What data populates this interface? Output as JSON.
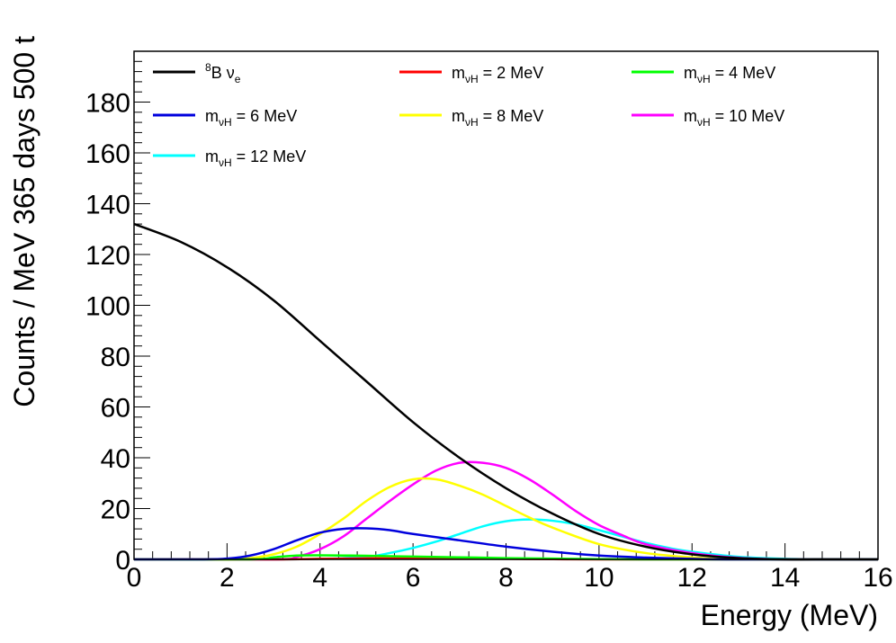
{
  "chart_data": {
    "type": "line",
    "xlabel": "Energy (MeV)",
    "ylabel": "Counts / MeV 365 days 500 t",
    "xlim": [
      0,
      16
    ],
    "ylim": [
      0,
      200
    ],
    "x_ticks": [
      0,
      2,
      4,
      6,
      8,
      10,
      12,
      14,
      16
    ],
    "y_ticks": [
      0,
      20,
      40,
      60,
      80,
      100,
      120,
      140,
      160,
      180
    ],
    "grid": false,
    "legend_position": "top",
    "series": [
      {
        "name": "8B νe",
        "label_main": "B ν",
        "label_sup": "8",
        "label_sub": "e",
        "color": "#000000",
        "x": [
          0,
          1,
          2,
          3,
          4,
          5,
          6,
          7,
          8,
          9,
          10,
          11,
          12,
          13,
          14,
          15,
          16
        ],
        "y": [
          132,
          125,
          115,
          102,
          86,
          70,
          54,
          40,
          28,
          18,
          10,
          5,
          2,
          0.5,
          0,
          0,
          0
        ]
      },
      {
        "name": "mνH = 2 MeV",
        "label_main": "m",
        "label_sub": "νH",
        "label_rest": " = 2 MeV",
        "color": "#ff0000",
        "x": [
          0,
          3,
          4,
          5,
          6,
          7,
          8,
          9,
          10,
          12,
          16
        ],
        "y": [
          0,
          0,
          0.2,
          0.4,
          0.4,
          0.3,
          0.2,
          0.1,
          0,
          0,
          0
        ]
      },
      {
        "name": "mνH = 4 MeV",
        "label_main": "m",
        "label_sub": "νH",
        "label_rest": " = 4 MeV",
        "color": "#00ff00",
        "x": [
          0,
          2.5,
          3,
          3.5,
          4,
          5,
          6,
          7,
          8,
          9,
          10,
          11,
          12,
          16
        ],
        "y": [
          0,
          0,
          0.8,
          1.5,
          1.6,
          1.4,
          1.1,
          0.8,
          0.5,
          0.3,
          0.1,
          0,
          0,
          0
        ]
      },
      {
        "name": "mνH = 6 MeV",
        "label_main": "m",
        "label_sub": "νH",
        "label_rest": " = 6 MeV",
        "color": "#0000dd",
        "x": [
          0,
          1.5,
          2,
          2.5,
          3,
          3.5,
          4,
          4.5,
          5,
          5.5,
          6,
          7,
          8,
          9,
          10,
          11,
          12,
          13,
          16
        ],
        "y": [
          0,
          0,
          0.3,
          1.5,
          4,
          7.5,
          10.5,
          12,
          12.2,
          11.5,
          10,
          7.5,
          5,
          3,
          1.5,
          0.7,
          0.2,
          0,
          0
        ]
      },
      {
        "name": "mνH = 8 MeV",
        "label_main": "m",
        "label_sub": "νH",
        "label_rest": " = 8 MeV",
        "color": "#ffff00",
        "x": [
          0,
          2,
          2.5,
          3,
          3.5,
          4,
          4.5,
          5,
          5.5,
          6,
          6.5,
          7,
          7.5,
          8,
          8.5,
          9,
          10,
          11,
          12,
          13,
          16
        ],
        "y": [
          0,
          0,
          0.5,
          2,
          5,
          10,
          16,
          23,
          28.5,
          31.5,
          31.5,
          29,
          25.5,
          21,
          16.5,
          12.5,
          6,
          2.5,
          0.8,
          0.1,
          0
        ]
      },
      {
        "name": "mνH = 10 MeV",
        "label_main": "m",
        "label_sub": "νH",
        "label_rest": " = 10 MeV",
        "color": "#ff00ff",
        "x": [
          0,
          3,
          3.5,
          4,
          4.5,
          5,
          5.5,
          6,
          6.5,
          7,
          7.5,
          8,
          8.5,
          9,
          9.5,
          10,
          10.5,
          11,
          12,
          13,
          14,
          16
        ],
        "y": [
          0,
          0,
          1,
          4,
          9,
          16,
          23,
          29.5,
          35,
          38,
          38,
          36,
          31.5,
          25.5,
          19,
          13.5,
          9.5,
          6,
          2.5,
          0.6,
          0,
          0
        ]
      },
      {
        "name": "mνH = 12 MeV",
        "label_main": "m",
        "label_sub": "νH",
        "label_rest": " = 12 MeV",
        "color": "#00ffff",
        "x": [
          0,
          3,
          4,
          5,
          5.5,
          6,
          6.5,
          7,
          7.5,
          8,
          8.5,
          9,
          9.5,
          10,
          10.5,
          11,
          11.5,
          12,
          13,
          14,
          15,
          16
        ],
        "y": [
          0,
          0,
          0.2,
          1,
          2.5,
          4.5,
          7,
          10,
          13,
          15,
          15.7,
          15.2,
          13.8,
          11.5,
          9,
          6.5,
          4.5,
          3,
          1,
          0.2,
          0,
          0
        ]
      }
    ]
  }
}
